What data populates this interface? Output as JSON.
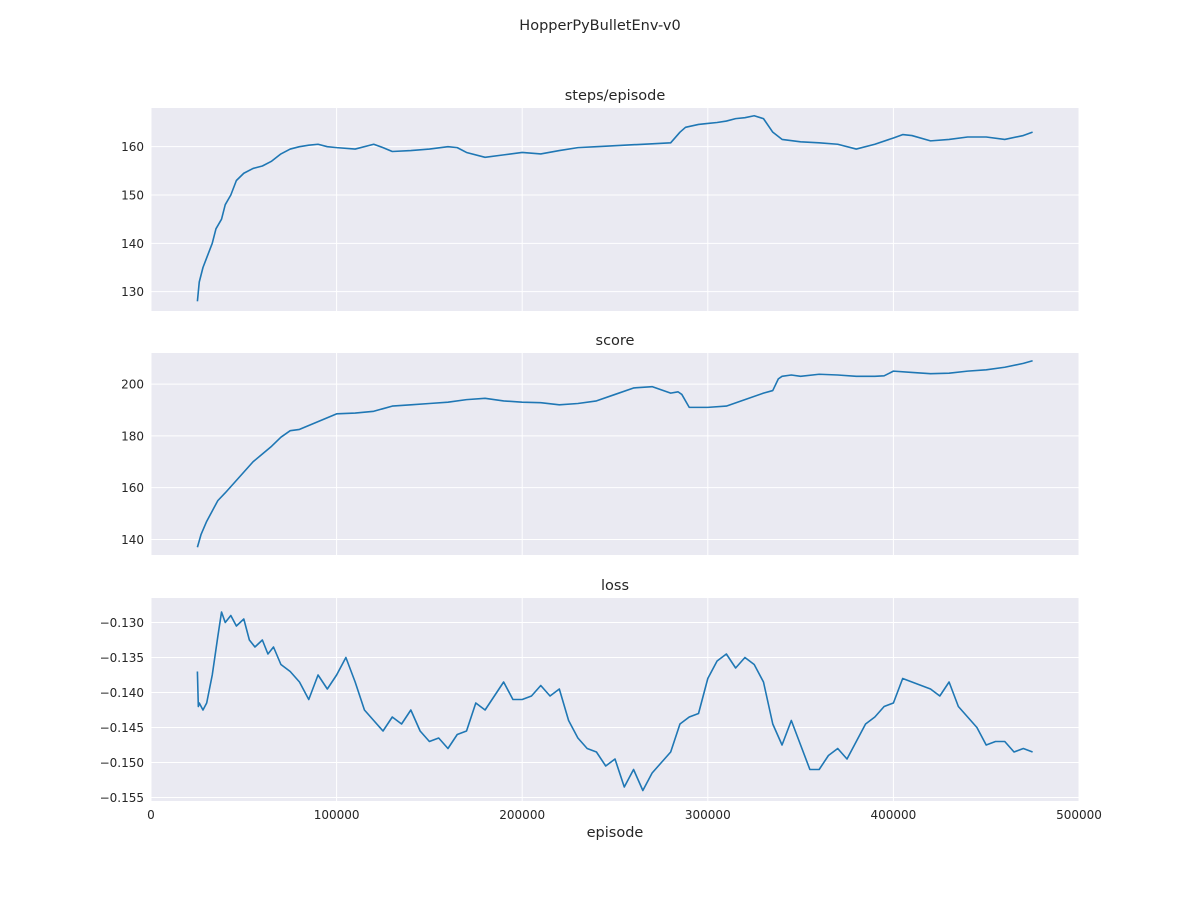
{
  "figure": {
    "suptitle": "HopperPyBulletEnv-v0"
  },
  "chart_data": [
    {
      "type": "line",
      "title": "steps/episode",
      "xlabel": "",
      "ylabel": "",
      "xlim": [
        0,
        500000
      ],
      "ylim": [
        126,
        168
      ],
      "yticks": [
        130,
        140,
        150,
        160
      ],
      "ytick_labels": [
        "130",
        "140",
        "150",
        "160"
      ],
      "xticks": [
        0,
        100000,
        200000,
        300000,
        400000,
        500000
      ],
      "xtick_labels_shown": false,
      "grid": true,
      "color": "#1f77b4",
      "x": [
        25000,
        26000,
        28000,
        30000,
        33000,
        35000,
        38000,
        40000,
        43000,
        46000,
        50000,
        55000,
        60000,
        65000,
        70000,
        75000,
        80000,
        85000,
        90000,
        95000,
        100000,
        110000,
        120000,
        125000,
        130000,
        140000,
        150000,
        160000,
        165000,
        170000,
        180000,
        190000,
        200000,
        210000,
        220000,
        230000,
        240000,
        250000,
        260000,
        270000,
        280000,
        285000,
        288000,
        295000,
        300000,
        305000,
        310000,
        315000,
        320000,
        325000,
        330000,
        335000,
        340000,
        350000,
        360000,
        370000,
        380000,
        390000,
        400000,
        405000,
        410000,
        420000,
        430000,
        440000,
        450000,
        460000,
        470000,
        475000
      ],
      "y": [
        128,
        132,
        135,
        137,
        140,
        143,
        145,
        148,
        150,
        153,
        154.5,
        155.5,
        156,
        157,
        158.5,
        159.5,
        160,
        160.3,
        160.5,
        160,
        159.8,
        159.5,
        160.5,
        159.8,
        159,
        159.2,
        159.5,
        160,
        159.8,
        158.8,
        157.8,
        158.3,
        158.8,
        158.5,
        159.2,
        159.8,
        160,
        160.2,
        160.4,
        160.6,
        160.8,
        163,
        164,
        164.6,
        164.8,
        165,
        165.3,
        165.8,
        166,
        166.4,
        165.8,
        163,
        161.5,
        161,
        160.8,
        160.5,
        159.5,
        160.5,
        161.8,
        162.5,
        162.3,
        161.2,
        161.5,
        162,
        162,
        161.5,
        162.3,
        163
      ]
    },
    {
      "type": "line",
      "title": "score",
      "xlabel": "",
      "ylabel": "",
      "xlim": [
        0,
        500000
      ],
      "ylim": [
        134,
        212
      ],
      "yticks": [
        140,
        160,
        180,
        200
      ],
      "ytick_labels": [
        "140",
        "160",
        "180",
        "200"
      ],
      "xticks": [
        0,
        100000,
        200000,
        300000,
        400000,
        500000
      ],
      "xtick_labels_shown": false,
      "grid": true,
      "color": "#1f77b4",
      "x": [
        25000,
        27000,
        30000,
        33000,
        36000,
        40000,
        45000,
        50000,
        55000,
        60000,
        65000,
        70000,
        75000,
        80000,
        85000,
        90000,
        95000,
        100000,
        110000,
        120000,
        130000,
        140000,
        150000,
        160000,
        170000,
        180000,
        190000,
        200000,
        210000,
        220000,
        230000,
        240000,
        250000,
        260000,
        270000,
        280000,
        284000,
        286000,
        290000,
        300000,
        310000,
        320000,
        330000,
        335000,
        338000,
        340000,
        345000,
        350000,
        360000,
        370000,
        380000,
        390000,
        395000,
        400000,
        410000,
        420000,
        430000,
        440000,
        450000,
        460000,
        470000,
        475000
      ],
      "y": [
        137,
        142,
        147,
        151,
        155,
        158,
        162,
        166,
        170,
        173,
        176,
        179.5,
        182,
        182.5,
        184,
        185.5,
        187,
        188.5,
        188.8,
        189.5,
        191.5,
        192,
        192.5,
        193,
        194,
        194.5,
        193.5,
        193,
        192.8,
        192,
        192.5,
        193.5,
        196,
        198.5,
        199,
        196.5,
        197,
        196,
        191,
        191,
        191.5,
        194,
        196.5,
        197.5,
        202,
        203,
        203.5,
        203,
        203.8,
        203.5,
        203,
        203,
        203.2,
        205,
        204.5,
        204,
        204.2,
        205,
        205.5,
        206.5,
        208,
        209
      ]
    },
    {
      "type": "line",
      "title": "loss",
      "xlabel": "episode",
      "ylabel": "",
      "xlim": [
        0,
        500000
      ],
      "ylim": [
        -0.1555,
        -0.1265
      ],
      "yticks": [
        -0.155,
        -0.15,
        -0.145,
        -0.14,
        -0.135,
        -0.13
      ],
      "ytick_labels": [
        "−0.155",
        "−0.150",
        "−0.145",
        "−0.140",
        "−0.135",
        "−0.130"
      ],
      "xticks": [
        0,
        100000,
        200000,
        300000,
        400000,
        500000
      ],
      "xtick_labels": [
        "0",
        "100000",
        "200000",
        "300000",
        "400000",
        "500000"
      ],
      "xtick_labels_shown": true,
      "grid": true,
      "color": "#1f77b4",
      "x": [
        25000,
        25500,
        26000,
        28000,
        30000,
        33000,
        36000,
        38000,
        40000,
        43000,
        46000,
        50000,
        53000,
        56000,
        60000,
        63000,
        66000,
        70000,
        75000,
        80000,
        85000,
        90000,
        95000,
        100000,
        105000,
        110000,
        115000,
        120000,
        125000,
        130000,
        135000,
        140000,
        145000,
        150000,
        155000,
        160000,
        165000,
        170000,
        175000,
        180000,
        185000,
        190000,
        195000,
        200000,
        205000,
        210000,
        215000,
        220000,
        225000,
        230000,
        235000,
        240000,
        245000,
        250000,
        255000,
        260000,
        265000,
        270000,
        275000,
        280000,
        285000,
        290000,
        295000,
        300000,
        305000,
        310000,
        315000,
        320000,
        325000,
        330000,
        335000,
        340000,
        345000,
        350000,
        355000,
        360000,
        365000,
        370000,
        375000,
        380000,
        385000,
        390000,
        395000,
        400000,
        405000,
        410000,
        415000,
        420000,
        425000,
        430000,
        435000,
        440000,
        445000,
        450000,
        455000,
        460000,
        465000,
        470000,
        475000
      ],
      "y": [
        -0.137,
        -0.142,
        -0.1415,
        -0.1425,
        -0.1415,
        -0.1375,
        -0.132,
        -0.1285,
        -0.13,
        -0.129,
        -0.1305,
        -0.1295,
        -0.1325,
        -0.1335,
        -0.1325,
        -0.1345,
        -0.1335,
        -0.136,
        -0.137,
        -0.1385,
        -0.141,
        -0.1375,
        -0.1395,
        -0.1375,
        -0.135,
        -0.1385,
        -0.1425,
        -0.144,
        -0.1455,
        -0.1435,
        -0.1445,
        -0.1425,
        -0.1455,
        -0.147,
        -0.1465,
        -0.148,
        -0.146,
        -0.1455,
        -0.1415,
        -0.1425,
        -0.1405,
        -0.1385,
        -0.141,
        -0.141,
        -0.1405,
        -0.139,
        -0.1405,
        -0.1395,
        -0.144,
        -0.1465,
        -0.148,
        -0.1485,
        -0.1505,
        -0.1495,
        -0.1535,
        -0.151,
        -0.154,
        -0.1515,
        -0.15,
        -0.1485,
        -0.1445,
        -0.1435,
        -0.143,
        -0.138,
        -0.1355,
        -0.1345,
        -0.1365,
        -0.135,
        -0.136,
        -0.1385,
        -0.1445,
        -0.1475,
        -0.144,
        -0.1475,
        -0.151,
        -0.151,
        -0.149,
        -0.148,
        -0.1495,
        -0.147,
        -0.1445,
        -0.1435,
        -0.142,
        -0.1415,
        -0.138,
        -0.1385,
        -0.139,
        -0.1395,
        -0.1405,
        -0.1385,
        -0.142,
        -0.1435,
        -0.145,
        -0.1475,
        -0.147,
        -0.147,
        -0.1485,
        -0.148,
        -0.1485
      ]
    }
  ]
}
